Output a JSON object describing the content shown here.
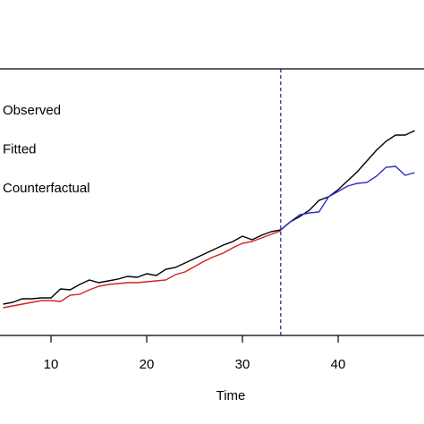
{
  "chart_data": {
    "type": "line",
    "x_label": "Time",
    "x": [
      5,
      6,
      7,
      8,
      9,
      10,
      11,
      12,
      13,
      14,
      15,
      16,
      17,
      18,
      19,
      20,
      21,
      22,
      23,
      24,
      25,
      26,
      27,
      28,
      29,
      30,
      31,
      32,
      33,
      34,
      35,
      36,
      37,
      38,
      39,
      40,
      41,
      42,
      43,
      44,
      45,
      46,
      47,
      48
    ],
    "series": [
      {
        "name": "Observed",
        "color": "#000000",
        "values": [
          35,
          37,
          41,
          41,
          42,
          42,
          52,
          51,
          57,
          62,
          59,
          61,
          63,
          66,
          65,
          69,
          67,
          74,
          76,
          81,
          86,
          91,
          96,
          101,
          105,
          111,
          107,
          112,
          116,
          118,
          127,
          133,
          140,
          151,
          155,
          163,
          173,
          183,
          195,
          207,
          217,
          224,
          224,
          229
        ]
      },
      {
        "name": "Fitted",
        "color": "#d42020",
        "values": [
          31,
          33,
          35,
          37,
          39,
          39,
          38,
          45,
          46,
          51,
          55,
          57,
          58,
          59,
          59,
          60,
          61,
          62,
          68,
          71,
          77,
          83,
          88,
          92,
          98,
          103,
          105,
          109,
          113,
          117,
          null,
          null,
          null,
          null,
          null,
          null,
          null,
          null,
          null,
          null,
          null,
          null,
          null,
          null
        ]
      },
      {
        "name": "Counterfactual",
        "color": "#2a2acc",
        "values": [
          null,
          null,
          null,
          null,
          null,
          null,
          null,
          null,
          null,
          null,
          null,
          null,
          null,
          null,
          null,
          null,
          null,
          null,
          null,
          null,
          null,
          null,
          null,
          null,
          null,
          null,
          null,
          null,
          null,
          118,
          127,
          135,
          137,
          138,
          155,
          161,
          167,
          170,
          171,
          178,
          188,
          189,
          179,
          182
        ]
      }
    ],
    "xlim": [
      4.67,
      48.97
    ],
    "xticks": [
      10,
      20,
      30,
      40
    ],
    "ylim": [
      0,
      298
    ],
    "vline": 34,
    "vline_color": "#1a1aa0"
  }
}
